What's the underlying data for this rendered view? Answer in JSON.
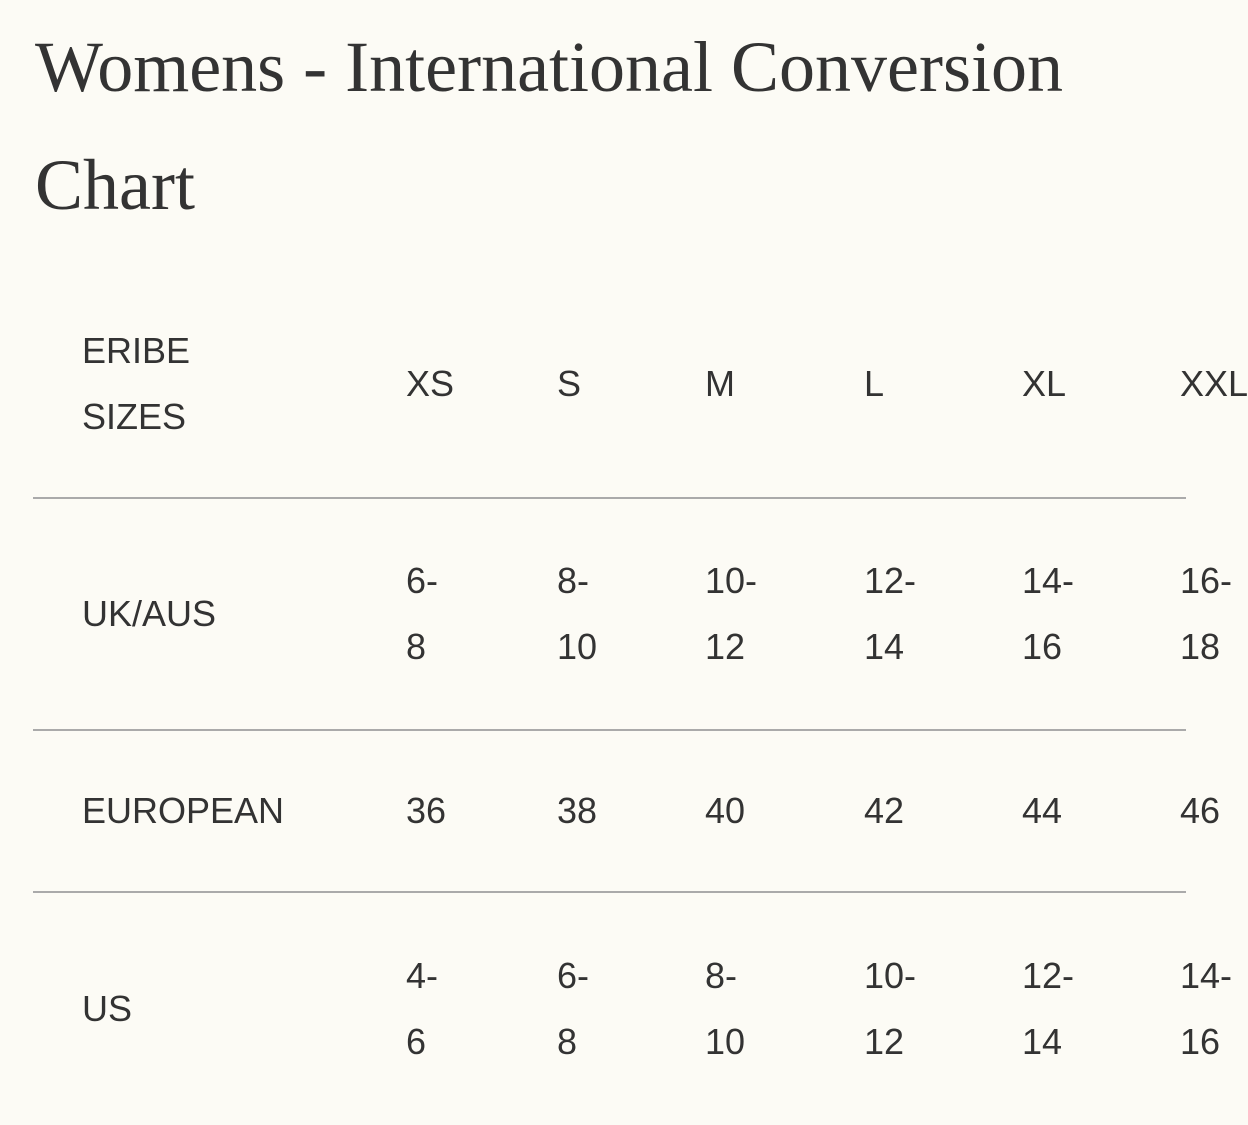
{
  "title": "Womens - International Conversion Chart",
  "table": {
    "header": [
      "ERIBE SIZES",
      "XS",
      "S",
      "M",
      "L",
      "XL",
      "XXL"
    ],
    "rows": [
      [
        "UK/AUS",
        "6-8",
        "8-10",
        "10-12",
        "12-14",
        "14-16",
        "16-18"
      ],
      [
        "EUROPEAN",
        "36",
        "38",
        "40",
        "42",
        "44",
        "46"
      ],
      [
        "US",
        "4-6",
        "6-8",
        "8-10",
        "10-12",
        "12-14",
        "14-16"
      ]
    ]
  }
}
